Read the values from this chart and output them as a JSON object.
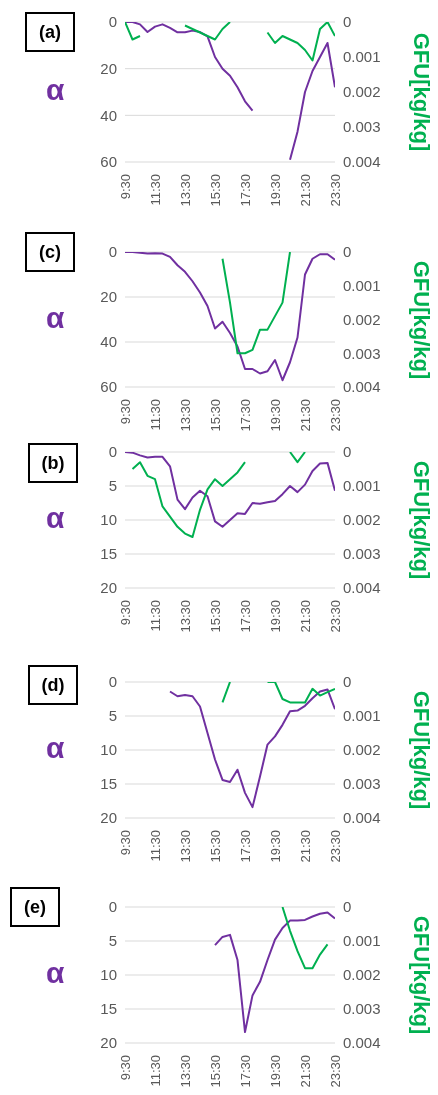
{
  "chart_data": [
    {
      "type": "line",
      "title": "(a)",
      "ylabel": "α",
      "y2label": "GFU[kg/kg]",
      "grid": "y",
      "marker": "none",
      "x": [
        9.5,
        10,
        10.5,
        11,
        11.5,
        12,
        12.5,
        13,
        13.5,
        14,
        14.5,
        15,
        15.5,
        16,
        16.5,
        17,
        17.5,
        18,
        18.5,
        19,
        19.5,
        20,
        20.5,
        21,
        21.5,
        22,
        22.5,
        23,
        23.5
      ],
      "xlim": [
        9.5,
        23.5
      ],
      "xticks": [
        {
          "value": 9.5,
          "label": "9:30"
        },
        {
          "value": 11.5,
          "label": "11:30"
        },
        {
          "value": 13.5,
          "label": "13:30"
        },
        {
          "value": 15.5,
          "label": "15:30"
        },
        {
          "value": 17.5,
          "label": "17:30"
        },
        {
          "value": 19.5,
          "label": "19:30"
        },
        {
          "value": 21.5,
          "label": "21:30"
        },
        {
          "value": 23.5,
          "label": "23:30"
        }
      ],
      "ylim": [
        60,
        0
      ],
      "yticks": [
        0,
        20,
        40,
        60
      ],
      "y2lim": [
        0.004,
        0
      ],
      "y2ticks": [
        0,
        0.001,
        0.002,
        0.003,
        0.004
      ],
      "series": [
        {
          "color": "#7030a0",
          "values": [
            0,
            0,
            1,
            4.3,
            2,
            1,
            2.5,
            4.4,
            4.4,
            3.7,
            4.3,
            6.2,
            15,
            20,
            23,
            28,
            34,
            38,
            null,
            null,
            null,
            null,
            59,
            47,
            30,
            21,
            15,
            9,
            28
          ]
        },
        {
          "color": "#00b050",
          "axis": "y2",
          "values": [
            0,
            0.0005,
            0.0004,
            null,
            null,
            null,
            null,
            null,
            0.0001,
            0.0002,
            0.0003,
            0.0004,
            0.0005,
            0.0002,
            0,
            null,
            null,
            null,
            null,
            0.0003,
            0.0006,
            0.0004,
            0.0005,
            0.0006,
            0.0008,
            0.0011,
            0.0002,
            0,
            0.0004
          ]
        }
      ]
    },
    {
      "type": "line",
      "title": "(c)",
      "ylabel": "α",
      "y2label": "GFU[kg/kg]",
      "grid": "y",
      "marker": "none",
      "x": [
        9.5,
        10,
        10.5,
        11,
        11.5,
        12,
        12.5,
        13,
        13.5,
        14,
        14.5,
        15,
        15.5,
        16,
        16.5,
        17,
        17.5,
        18,
        18.5,
        19,
        19.5,
        20,
        20.5,
        21,
        21.5,
        22,
        22.5,
        23,
        23.5
      ],
      "xlim": [
        9.5,
        23.5
      ],
      "xticks": [
        {
          "value": 9.5,
          "label": "9:30"
        },
        {
          "value": 11.5,
          "label": "11:30"
        },
        {
          "value": 13.5,
          "label": "13:30"
        },
        {
          "value": 15.5,
          "label": "15:30"
        },
        {
          "value": 17.5,
          "label": "17:30"
        },
        {
          "value": 19.5,
          "label": "19:30"
        },
        {
          "value": 21.5,
          "label": "21:30"
        },
        {
          "value": 23.5,
          "label": "23:30"
        }
      ],
      "ylim": [
        60,
        0
      ],
      "yticks": [
        0,
        20,
        40,
        60
      ],
      "y2lim": [
        0.004,
        0
      ],
      "y2ticks": [
        0,
        0.001,
        0.002,
        0.003,
        0.004
      ],
      "series": [
        {
          "color": "#7030a0",
          "values": [
            0,
            0,
            0.3,
            0.7,
            0.6,
            0.7,
            2.2,
            5.9,
            8.8,
            13,
            18,
            24,
            34,
            31,
            36,
            42,
            52,
            52,
            54,
            53,
            48,
            57,
            49,
            38,
            10,
            3,
            1,
            1,
            3.4
          ]
        },
        {
          "color": "#00b050",
          "axis": "y2",
          "values": [
            null,
            null,
            null,
            null,
            null,
            null,
            null,
            null,
            null,
            null,
            null,
            null,
            null,
            0.0002,
            0.0015,
            0.003,
            0.003,
            0.0029,
            0.0023,
            0.0023,
            0.0019,
            0.0015,
            0,
            null,
            null,
            null,
            null,
            null,
            null
          ]
        }
      ]
    },
    {
      "type": "line",
      "title": "(b)",
      "ylabel": "α",
      "y2label": "GFU[kg/kg]",
      "grid": "y",
      "marker": "none",
      "x": [
        9.5,
        10,
        10.5,
        11,
        11.5,
        12,
        12.5,
        13,
        13.5,
        14,
        14.5,
        15,
        15.5,
        16,
        16.5,
        17,
        17.5,
        18,
        18.5,
        19,
        19.5,
        20,
        20.5,
        21,
        21.5,
        22,
        22.5,
        23,
        23.5
      ],
      "xlim": [
        9.5,
        23.5
      ],
      "xticks": [
        {
          "value": 9.5,
          "label": "9:30"
        },
        {
          "value": 11.5,
          "label": "11:30"
        },
        {
          "value": 13.5,
          "label": "13:30"
        },
        {
          "value": 15.5,
          "label": "15:30"
        },
        {
          "value": 17.5,
          "label": "17:30"
        },
        {
          "value": 19.5,
          "label": "19:30"
        },
        {
          "value": 21.5,
          "label": "21:30"
        },
        {
          "value": 23.5,
          "label": "23:30"
        }
      ],
      "ylim": [
        20,
        0
      ],
      "yticks": [
        0,
        5,
        10,
        15,
        20
      ],
      "y2lim": [
        0.004,
        0
      ],
      "y2ticks": [
        0,
        0.001,
        0.002,
        0.003,
        0.004
      ],
      "series": [
        {
          "color": "#7030a0",
          "values": [
            0,
            0.1,
            0.5,
            0.8,
            0.7,
            0.7,
            2.1,
            7,
            8.4,
            6.7,
            5.7,
            6.5,
            10.2,
            11,
            10,
            9,
            9.1,
            7.5,
            7.6,
            7.4,
            7.2,
            6.2,
            5,
            5.9,
            4.8,
            2.8,
            1.7,
            1.6,
            5.7
          ]
        },
        {
          "color": "#00b050",
          "axis": "y2",
          "values": [
            null,
            0.0005,
            0.0003,
            0.0007,
            0.0008,
            0.0016,
            0.0019,
            0.0022,
            0.0024,
            0.0025,
            0.0017,
            0.0011,
            0.0008,
            0.001,
            0.0008,
            0.0006,
            0.0003,
            null,
            null,
            null,
            null,
            null,
            0,
            0.0003,
            0,
            null,
            null,
            null,
            null
          ]
        }
      ]
    },
    {
      "type": "line",
      "title": "(d)",
      "ylabel": "α",
      "y2label": "GFU[kg/kg]",
      "grid": "y",
      "marker": "none",
      "x": [
        12.5,
        13,
        13.5,
        14,
        14.5,
        15,
        15.5,
        16,
        16.5,
        17,
        17.5,
        18,
        18.5,
        19,
        19.5,
        20,
        20.5,
        21,
        21.5,
        22,
        22.5,
        23,
        23.5
      ],
      "xlim": [
        9.5,
        23.5
      ],
      "xticks": [
        {
          "value": 9.5,
          "label": "9:30"
        },
        {
          "value": 11.5,
          "label": "11:30"
        },
        {
          "value": 13.5,
          "label": "13:30"
        },
        {
          "value": 15.5,
          "label": "15:30"
        },
        {
          "value": 17.5,
          "label": "17:30"
        },
        {
          "value": 19.5,
          "label": "19:30"
        },
        {
          "value": 21.5,
          "label": "21:30"
        },
        {
          "value": 23.5,
          "label": "23:30"
        }
      ],
      "ylim": [
        20,
        0
      ],
      "yticks": [
        0,
        5,
        10,
        15,
        20
      ],
      "y2lim": [
        0.004,
        0
      ],
      "y2ticks": [
        0,
        0.001,
        0.002,
        0.003,
        0.004
      ],
      "series": [
        {
          "color": "#7030a0",
          "values": [
            1.4,
            2.1,
            1.9,
            2.1,
            3.6,
            7.5,
            11.4,
            14.4,
            14.7,
            12.9,
            16.3,
            18.4,
            13.9,
            9.2,
            8,
            6.3,
            4.3,
            4.2,
            3.5,
            2.4,
            1.4,
            1.1,
            4
          ]
        },
        {
          "color": "#00b050",
          "axis": "y2",
          "values": [
            null,
            null,
            null,
            null,
            null,
            null,
            null,
            0.0006,
            0,
            null,
            null,
            null,
            null,
            0,
            0,
            0.0005,
            0.0006,
            0.0006,
            0.0006,
            0.0002,
            0.0004,
            0.0003,
            0.0002
          ]
        }
      ]
    },
    {
      "type": "line",
      "title": "(e)",
      "ylabel": "α",
      "y2label": "GFU[kg/kg]",
      "grid": "y",
      "marker": "none",
      "x": [
        15.5,
        16,
        16.5,
        17,
        17.5,
        18,
        18.5,
        19,
        19.5,
        20,
        20.5,
        21,
        21.5,
        22,
        22.5,
        23,
        23.5
      ],
      "xlim": [
        9.5,
        23.5
      ],
      "xticks": [
        {
          "value": 9.5,
          "label": "9:30"
        },
        {
          "value": 11.5,
          "label": "11:30"
        },
        {
          "value": 13.5,
          "label": "13:30"
        },
        {
          "value": 15.5,
          "label": "15:30"
        },
        {
          "value": 17.5,
          "label": "17:30"
        },
        {
          "value": 19.5,
          "label": "19:30"
        },
        {
          "value": 21.5,
          "label": "21:30"
        },
        {
          "value": 23.5,
          "label": "23:30"
        }
      ],
      "ylim": [
        20,
        0
      ],
      "yticks": [
        0,
        5,
        10,
        15,
        20
      ],
      "y2lim": [
        0.004,
        0
      ],
      "y2ticks": [
        0,
        0.001,
        0.002,
        0.003,
        0.004
      ],
      "series": [
        {
          "color": "#7030a0",
          "values": [
            5.6,
            4.4,
            4.1,
            7.8,
            18.4,
            13,
            11,
            7.8,
            4.8,
            3.1,
            2,
            2,
            1.9,
            1.4,
            1,
            0.8,
            1.7
          ]
        },
        {
          "color": "#00b050",
          "axis": "y2",
          "values": [
            null,
            null,
            null,
            null,
            null,
            null,
            null,
            null,
            null,
            0,
            0.0007,
            0.0013,
            0.0018,
            0.0018,
            0.0014,
            0.0011,
            null
          ]
        }
      ]
    }
  ]
}
